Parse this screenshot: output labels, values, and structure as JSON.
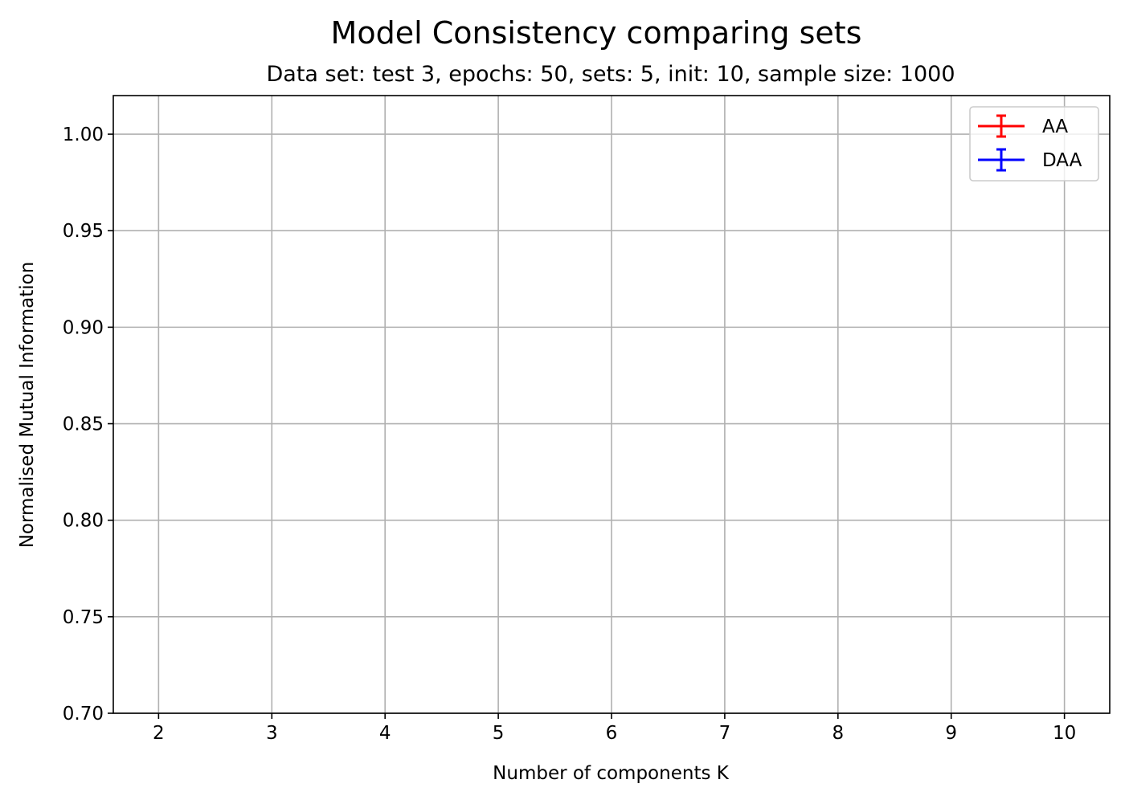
{
  "chart_data": {
    "type": "line",
    "title": "Model Consistency comparing sets",
    "subtitle": "Data set: test 3, epochs: 50, sets: 5, init: 10, sample size: 1000",
    "xlabel": "Number of components K",
    "ylabel": "Normalised Mutual Information",
    "x_ticks": [
      2,
      3,
      4,
      5,
      6,
      7,
      8,
      9,
      10
    ],
    "x_tick_labels": [
      "2",
      "3",
      "4",
      "5",
      "6",
      "7",
      "8",
      "9",
      "10"
    ],
    "y_ticks": [
      0.7,
      0.75,
      0.8,
      0.85,
      0.9,
      0.95,
      1.0
    ],
    "y_tick_labels": [
      "0.70",
      "0.75",
      "0.80",
      "0.85",
      "0.90",
      "0.95",
      "1.00"
    ],
    "xlim": [
      1.6,
      10.4
    ],
    "ylim": [
      0.7,
      1.02
    ],
    "grid": true,
    "legend_position": "top-right",
    "series": [
      {
        "name": "AA",
        "color": "#ff0000",
        "x": [],
        "y": [],
        "yerr": []
      },
      {
        "name": "DAA",
        "color": "#0000ff",
        "x": [],
        "y": [],
        "yerr": []
      }
    ]
  }
}
